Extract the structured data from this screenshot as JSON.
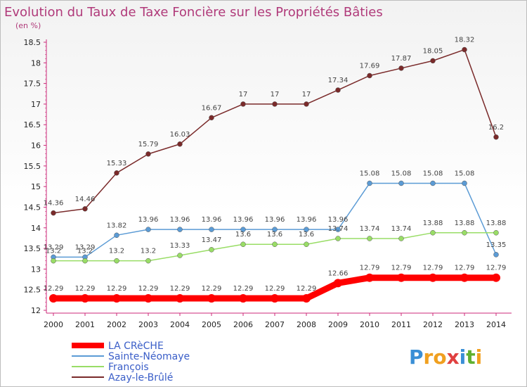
{
  "chart_data": {
    "type": "line",
    "title": "Evolution du Taux de Taxe Foncière sur les Propriétés Bâties",
    "subtitle": "(en %)",
    "x": [
      "2000",
      "2001",
      "2002",
      "2003",
      "2004",
      "2005",
      "2006",
      "2007",
      "2008",
      "2009",
      "2010",
      "2011",
      "2012",
      "2013",
      "2014"
    ],
    "ylim": [
      12,
      18.5
    ],
    "yticks": [
      "12",
      "12.5",
      "13",
      "13.5",
      "14",
      "14.5",
      "15",
      "15.5",
      "16",
      "16.5",
      "17",
      "17.5",
      "18",
      "18.5"
    ],
    "grid": false,
    "legend_position": "bottom-left",
    "series": [
      {
        "name": "LA CRèCHE",
        "color": "#ff0000",
        "values": [
          12.29,
          12.29,
          12.29,
          12.29,
          12.29,
          12.29,
          12.29,
          12.29,
          12.29,
          12.66,
          12.79,
          12.79,
          12.79,
          12.79,
          12.79
        ],
        "labels": [
          "12.29",
          "12.29",
          "12.29",
          "12.29",
          "12.29",
          "12.29",
          "12.29",
          "12.29",
          "12.29",
          "12.66",
          "12.79",
          "12.79",
          "12.79",
          "12.79",
          "12.79"
        ]
      },
      {
        "name": "Sainte-Néomaye",
        "color": "#5b9bd5",
        "values": [
          13.29,
          13.29,
          13.82,
          13.96,
          13.96,
          13.96,
          13.96,
          13.96,
          13.96,
          13.96,
          15.08,
          15.08,
          15.08,
          15.08,
          13.35
        ],
        "labels": [
          "13.29",
          "13.29",
          "13.82",
          "13.96",
          "13.96",
          "13.96",
          "13.96",
          "13.96",
          "13.96",
          "13.96",
          "15.08",
          "15.08",
          "15.08",
          "15.08",
          "13.35"
        ]
      },
      {
        "name": "François",
        "color": "#99dd66",
        "values": [
          13.2,
          13.2,
          13.2,
          13.2,
          13.33,
          13.47,
          13.6,
          13.6,
          13.6,
          13.74,
          13.74,
          13.74,
          13.88,
          13.88,
          13.88
        ],
        "labels": [
          "13.2",
          "13.2",
          "13.2",
          "13.2",
          "13.33",
          "13.47",
          "13.6",
          "13.6",
          "13.6",
          "13.74",
          "13.74",
          "13.74",
          "13.88",
          "13.88",
          "13.88"
        ]
      },
      {
        "name": "Azay-le-Brûlé",
        "color": "#7a2a2a",
        "values": [
          14.36,
          14.46,
          15.33,
          15.79,
          16.03,
          16.67,
          17,
          17,
          17,
          17.34,
          17.69,
          17.87,
          18.05,
          18.32,
          16.2
        ],
        "labels": [
          "14.36",
          "14.46",
          "15.33",
          "15.79",
          "16.03",
          "16.67",
          "17",
          "17",
          "17",
          "17.34",
          "17.69",
          "17.87",
          "18.05",
          "18.32",
          "16.2"
        ]
      }
    ]
  },
  "logo": {
    "text": "Proxiti",
    "colors": [
      "#3a8fd6",
      "#f0a020",
      "#e04040",
      "#60b030"
    ]
  }
}
